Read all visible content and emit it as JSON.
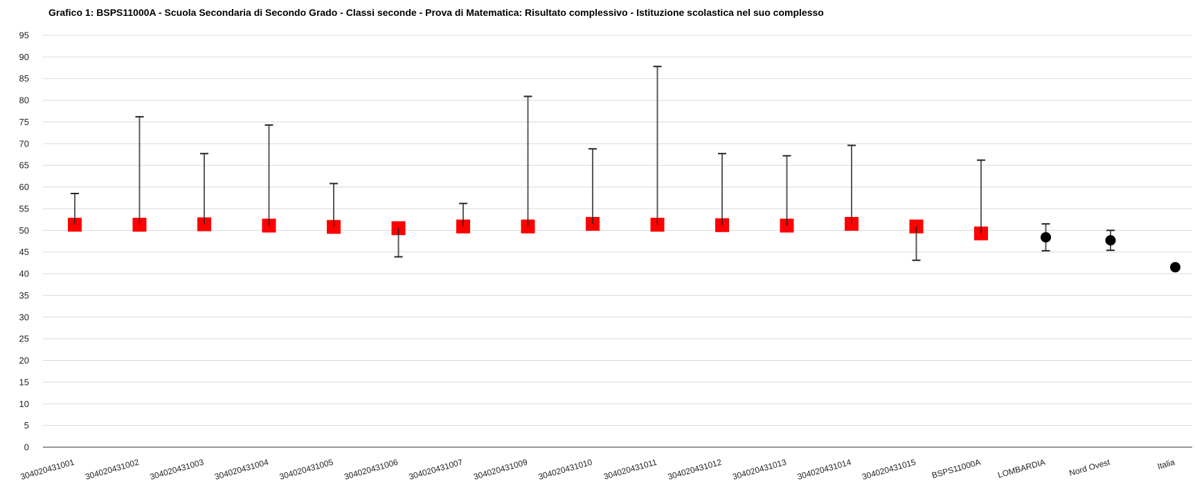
{
  "chart_data": {
    "type": "scatter",
    "title": "Grafico 1: BSPS11000A - Scuola Secondaria di Secondo Grado - Classi seconde - Prova di Matematica: Risultato complessivo - Istituzione scolastica nel suo complesso",
    "xlabel": "",
    "ylabel": "",
    "ylim": [
      0,
      95
    ],
    "yticks": [
      0,
      5,
      10,
      15,
      20,
      25,
      30,
      35,
      40,
      45,
      50,
      55,
      60,
      65,
      70,
      75,
      80,
      85,
      90,
      95
    ],
    "grid": true,
    "categories": [
      "304020431001",
      "304020431002",
      "304020431003",
      "304020431004",
      "304020431005",
      "304020431006",
      "304020431007",
      "304020431009",
      "304020431010",
      "304020431011",
      "304020431012",
      "304020431013",
      "304020431014",
      "304020431015",
      "BSPS11000A",
      "LOMBARDIA",
      "Nord Ovest",
      "Italia"
    ],
    "values": [
      51.3,
      51.3,
      51.4,
      51.1,
      50.8,
      50.5,
      50.9,
      50.9,
      51.5,
      51.3,
      51.2,
      51.1,
      51.5,
      50.9,
      49.3,
      48.4,
      47.7,
      41.5
    ],
    "error_high": [
      58.5,
      76.2,
      67.7,
      74.3,
      60.8,
      50.5,
      56.2,
      80.9,
      68.8,
      87.8,
      67.7,
      67.2,
      69.6,
      50.9,
      66.2,
      51.5,
      50.0,
      42.1
    ],
    "error_low": [
      51.3,
      51.3,
      51.4,
      51.1,
      50.8,
      43.9,
      50.9,
      50.9,
      51.5,
      51.3,
      51.2,
      51.1,
      51.5,
      43.1,
      49.3,
      45.3,
      45.4,
      41.0
    ],
    "marker_shapes": [
      "square",
      "square",
      "square",
      "square",
      "square",
      "square",
      "square",
      "square",
      "square",
      "square",
      "square",
      "square",
      "square",
      "square",
      "square",
      "circle",
      "circle",
      "circle"
    ],
    "colors": {
      "square": "#ff0000",
      "circle": "#000000",
      "error_bar": "#595959",
      "grid": "#d9d9d9",
      "axis": "#595959"
    }
  }
}
